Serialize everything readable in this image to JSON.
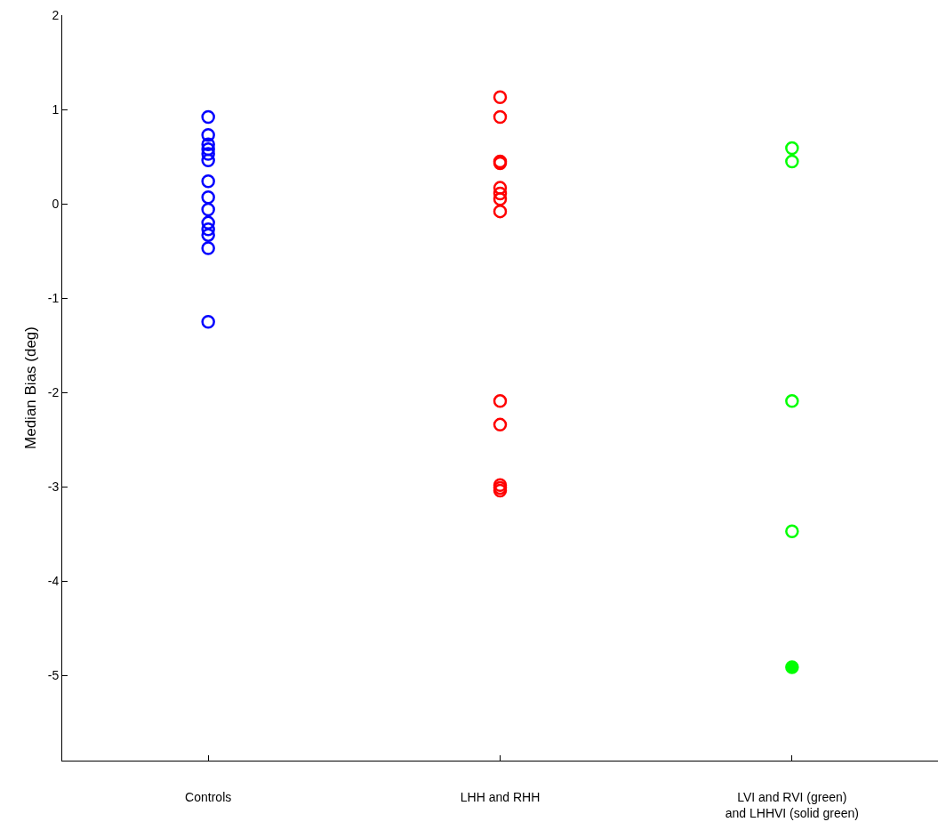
{
  "chart_data": {
    "type": "scatter",
    "ylabel": "Median Bias (deg)",
    "categories": [
      "Controls",
      "LHH and RHH",
      "LVI and RVI (green)\nand LHHVI (solid green)"
    ],
    "ylim": [
      -5.9,
      2
    ],
    "yticks": [
      -5,
      -4,
      -3,
      -2,
      -1,
      0,
      1,
      2
    ],
    "marker": "circle",
    "series": [
      {
        "color": "#0000ff",
        "x": [
          "Controls",
          "Controls",
          "Controls",
          "Controls",
          "Controls",
          "Controls",
          "Controls",
          "Controls",
          "Controls",
          "Controls",
          "Controls",
          "Controls",
          "Controls",
          "Controls"
        ],
        "values": [
          0.92,
          0.73,
          0.63,
          0.58,
          0.53,
          0.46,
          0.24,
          0.07,
          -0.06,
          -0.2,
          -0.27,
          -0.33,
          -0.47,
          -1.25
        ]
      },
      {
        "color": "#ff0000",
        "x": [
          "LHH and RHH",
          "LHH and RHH",
          "LHH and RHH",
          "LHH and RHH",
          "LHH and RHH",
          "LHH and RHH",
          "LHH and RHH",
          "LHH and RHH",
          "LHH and RHH",
          "LHH and RHH",
          "LHH and RHH",
          "LHH and RHH",
          "LHH and RHH"
        ],
        "values": [
          1.13,
          0.92,
          0.45,
          0.43,
          0.17,
          0.11,
          0.05,
          -0.08,
          -2.09,
          -2.34,
          -2.98,
          -3.01,
          -3.04
        ]
      },
      {
        "color": "#00ff00",
        "x": [
          "LVI and RVI (green)\nand LHHVI (solid green)",
          "LVI and RVI (green)\nand LHHVI (solid green)",
          "LVI and RVI (green)\nand LHHVI (solid green)",
          "LVI and RVI (green)\nand LHHVI (solid green)"
        ],
        "values": [
          0.59,
          0.45,
          -2.09,
          -3.47
        ]
      },
      {
        "color": "#00ff00",
        "marker": "circle",
        "x": [
          "LVI and RVI (green)\nand LHHVI (solid green)"
        ],
        "values": [
          -4.91
        ]
      }
    ]
  }
}
